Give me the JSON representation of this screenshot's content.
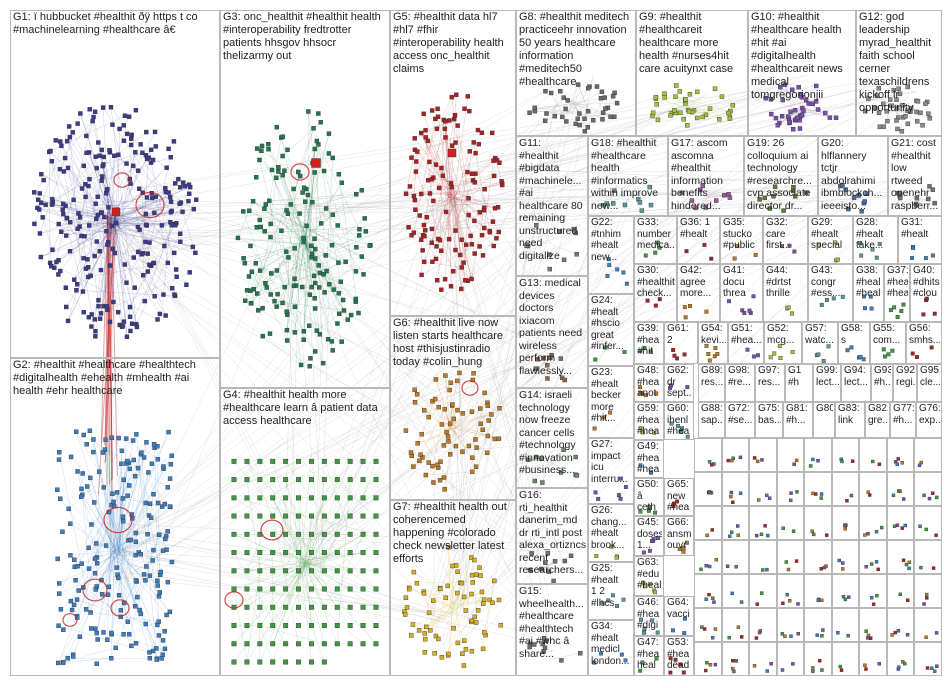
{
  "groups": [
    {
      "id": "G1",
      "text": "G1: ï hubbucket #healthit ðÿ https t co\n#machinelearning #healthcare â€",
      "color": "#3a3a8f"
    },
    {
      "id": "G2",
      "text": "G2: #healthit #healthcare #healthtech\n#digitalhealth #ehealth #mhealth #ai\nhealth #ehr healthcare",
      "color": "#3a7fc4"
    },
    {
      "id": "G3",
      "text": "G3: onc_healthit #healthit health\n#interoperability fredtrotter\npatients hhsgov hhsocr\nthelizarmy out",
      "color": "#1f7a4d"
    },
    {
      "id": "G4",
      "text": "G4: #healthit health more\n#healthcare learn â patient data\naccess healthcare",
      "color": "#3f9a3f"
    },
    {
      "id": "G5",
      "text": "G5: #healthit data hl7\n#hl7 #fhir\n#interoperability health\naccess onc_healthit\nclaims",
      "color": "#b02020"
    },
    {
      "id": "G6",
      "text": "G6: #healthit live now\nlisten starts healthcare\nhost #thisjustinradio\ntoday #colin_hung",
      "color": "#c07a1f"
    },
    {
      "id": "G7",
      "text": "G7: #healthit health out\ncoherencemed\nhappening #colorado\ncheck newsletter latest\nefforts",
      "color": "#d8b21a"
    },
    {
      "id": "G8",
      "text": "G8: #healthit meditech\npracticeehr innovation\n50 years healthcare\ninformation\n#meditech50\n#healthcare",
      "color": "#6a6a6a"
    },
    {
      "id": "G9",
      "text": "G9: #healthit\n#healthcareit\nhealthcare more\nhealth #nurses4hit\ncare acuitynxt case",
      "color": "#a0c33a"
    },
    {
      "id": "G10",
      "text": "G10: #healthit\n#healthcare health\n#hit #ai\n#digitalhealth\n#healthcareit news\nmedical\ntomgregorionjii",
      "color": "#7b4fb0"
    },
    {
      "id": "G12",
      "text": "G12: god\nleadership\nmyrad_healthit\nfaith school\ncerner\ntexaschildrens\nkickoff lr\nopportunity",
      "color": "#8a8a8a"
    },
    {
      "id": "G11",
      "text": "G11:\n#healthit\n#bigdata\n#machinele...\n#ai\nhealthcare 80\nremaining\nunstructured\nneed\ndigitalize",
      "color": "#777777"
    },
    {
      "id": "G18",
      "text": "G18: #healthit\n#healthcare\nhealth\n#informatics\nwithin improve\nnew...",
      "color": "#5a9a9a"
    },
    {
      "id": "G17",
      "text": "G17: ascom\nascomna\n#healthit\ninformation\nbenefits\nhindered...",
      "color": "#9a5a9a"
    },
    {
      "id": "G19",
      "text": "G19: 26\ncolloquium ai\ntechnology\n#researchre...\ncvp associate\ndirector dr...",
      "color": "#5a7a3a"
    },
    {
      "id": "G20",
      "text": "G20:\nhlflannery\ntctjr\nabdolrahimi\nibmblockch...\nieeeisto...",
      "color": "#4a6aa0"
    },
    {
      "id": "G21",
      "text": "G21: cost\n#healthit\nlow\nrtweed\nopenehr\nraspberr...",
      "color": "#707070"
    },
    {
      "id": "G13",
      "text": "G13: medical\ndevices\ndoctors\nixiacom\npatients need\nwireless\nperform\nflawlessly...",
      "color": "#8a6a4a"
    },
    {
      "id": "G14",
      "text": "G14: israeli\ntechnology\nnow freeze\ncancer cells\n#technology\n#innovation\n#business...",
      "color": "#6a8a6a"
    },
    {
      "id": "G16",
      "text": "G16:\nrti_healthit\ndanerim_md\ndr rti_intl post\nalexa_ortizncs\nrecent\nresearchers...",
      "color": "#707070"
    },
    {
      "id": "G15",
      "text": "G15:\nwheelhealth...\n#healthcare\n#healthtech\n#ai #whc â\nshare...",
      "color": "#707070"
    }
  ],
  "small_cells": [
    "G22:\n#tnhim\n#healt\nnew...",
    "G33:\nnumber\nmedica...",
    "G36: 1\n#healt",
    "G35:\nstucko\n#public",
    "G32:\ncare\nfirst...",
    "G29:\n#healt\nspecial",
    "G28:\n#healt\ntake...",
    "G31:\n#healt",
    "G24:\n#healt\n#hscio\ngreat\n#infer...",
    "G30:\n#healthit\ncheck...",
    "G42:\nagree\nmore...",
    "G41:\ndocu\nthrea",
    "G44:\n#drtst\nthrille",
    "G43:\ncongr\n#ess...",
    "G38:\n#heal\n#heal",
    "G37:\n#heal\n#heal",
    "G40:\n#dhits\n#clou",
    "G23:\n#healt\nbecker\nmore\n#hit...",
    "G27:\nimpact\nicu\ninterru...",
    "G26:\nchang...\n#healt\nbrook...",
    "G25:\n#healt\n1 2\n#lhcs",
    "G34:\n#healt\nmedicl\nlondon...",
    "G39:\n#hea\n#hit",
    "G61:\n2",
    "G54:\nkevi...",
    "G51:\n#hea...",
    "G52:\nmcg...",
    "G57:\nwatc...",
    "G58:\ns",
    "G55:\ncom...",
    "G56:\nsmhs...",
    "G48:\n#hea\nanot",
    "G62:\ndr\nsept...",
    "G59:\n#hea\n#hea",
    "G60:\nihenl\n#hea",
    "G49:\n#hea\n#hea",
    "G50:\nâ\nceth",
    "G65:\nnew\n#hea",
    "G66:\nansm\nouvr",
    "G45:\ndoses\n1...",
    "G63:\n#edu\n#heal",
    "G46:\n#hea\n#digi",
    "G64:\nvacci",
    "G47:\n#hea\nheal",
    "G53:\n#hea\ndead"
  ],
  "micro_cells": [
    "G89:\nres...",
    "G98:\n#re...",
    "G97:\nres...",
    "G1\n#h",
    "G99:\nlect...",
    "G94:\nlect...",
    "G93:\n#h...",
    "G92:\nregi...",
    "G95:\ncle...",
    "G88:\nsap...",
    "G72:\n#se...",
    "G75:\nbas...",
    "G81:\n#h...",
    "G80",
    "G83:\nlink",
    "G82:\ngre...",
    "G77:\n#h...",
    "G76:\nexp..."
  ]
}
